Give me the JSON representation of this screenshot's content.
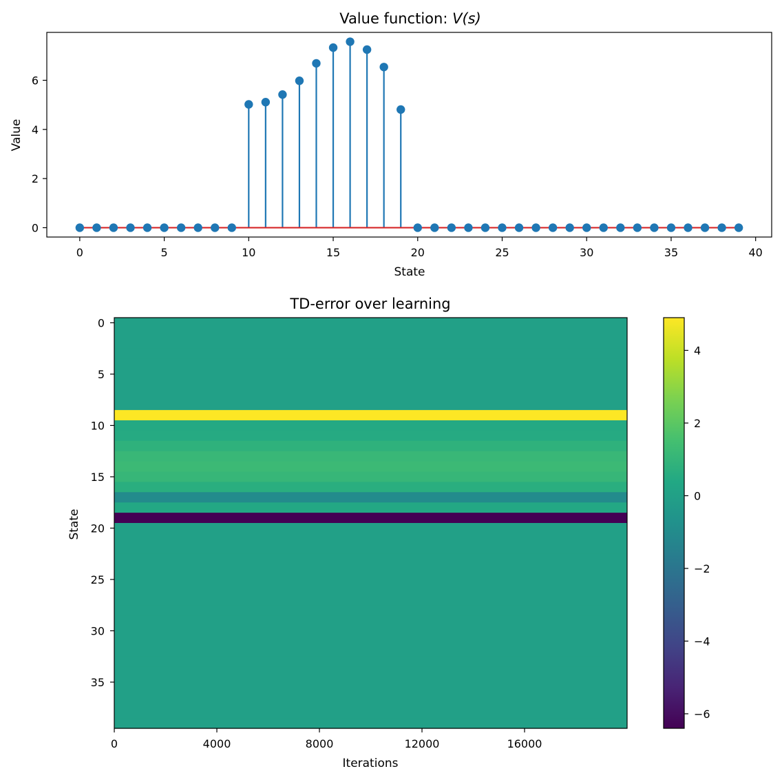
{
  "chart_data": [
    {
      "type": "stem",
      "title": "Value function: ",
      "title_math": "V(s)",
      "xlabel": "State",
      "ylabel": "Value",
      "x": [
        0,
        1,
        2,
        3,
        4,
        5,
        6,
        7,
        8,
        9,
        10,
        11,
        12,
        13,
        14,
        15,
        16,
        17,
        18,
        19,
        20,
        21,
        22,
        23,
        24,
        25,
        26,
        27,
        28,
        29,
        30,
        31,
        32,
        33,
        34,
        35,
        36,
        37,
        38,
        39
      ],
      "values": [
        0,
        0,
        0,
        0,
        0,
        0,
        0,
        0,
        0,
        0,
        5.02,
        5.11,
        5.42,
        5.98,
        6.69,
        7.33,
        7.57,
        7.25,
        6.54,
        4.81,
        0,
        0,
        0,
        0,
        0,
        0,
        0,
        0,
        0,
        0,
        0,
        0,
        0,
        0,
        0,
        0,
        0,
        0,
        0,
        0
      ],
      "xlim": [
        -1.95,
        40.95
      ],
      "ylim": [
        -0.38,
        7.95
      ],
      "xticks": [
        "0",
        "5",
        "10",
        "15",
        "20",
        "25",
        "30",
        "35",
        "40"
      ],
      "yticks": [
        "0",
        "2",
        "4",
        "6"
      ],
      "marker_color": "#1f77b4",
      "baseline_color": "#d62728",
      "grid": false
    },
    {
      "type": "heatmap",
      "title": "TD-error over learning",
      "xlabel": "Iterations",
      "ylabel": "State",
      "rows": 40,
      "columns": 20000,
      "row_values": [
        0,
        0,
        0,
        0,
        0,
        0,
        0,
        0,
        0,
        4.9,
        0.45,
        0.5,
        0.82,
        1.14,
        1.23,
        1.08,
        0.66,
        -1.03,
        0.4,
        -6.4,
        0,
        0,
        0,
        0,
        0,
        0,
        0,
        0,
        0,
        0,
        0,
        0,
        0,
        0,
        0,
        0,
        0,
        0,
        0,
        0
      ],
      "xticks": [
        "0",
        "4000",
        "8000",
        "12000",
        "16000"
      ],
      "yticks": [
        "0",
        "5",
        "10",
        "15",
        "20",
        "25",
        "30",
        "35"
      ],
      "colormap": "viridis",
      "colorbar": {
        "range": [
          -6.4,
          4.9
        ],
        "ticks": [
          "4",
          "2",
          "0",
          "−2",
          "−4",
          "−6"
        ]
      },
      "grid": false
    }
  ]
}
